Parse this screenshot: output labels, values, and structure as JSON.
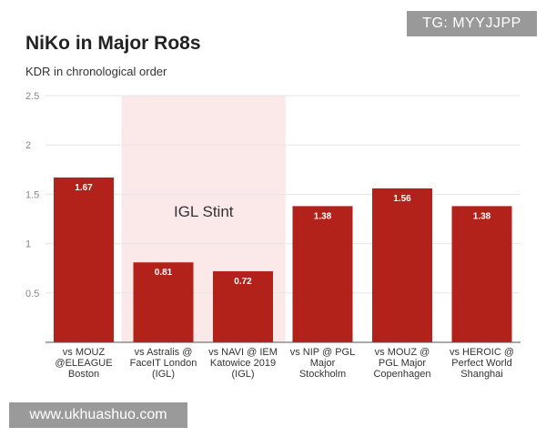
{
  "chart_data": {
    "type": "bar",
    "title": "NiKo in Major Ro8s",
    "subtitle": "KDR in chronological order",
    "xlabel": "",
    "ylabel": "",
    "ylim": [
      0,
      2.5
    ],
    "yticks": [
      "0.5",
      "1",
      "1.5",
      "2",
      "2.5"
    ],
    "tick_values": [
      0.5,
      1,
      1.5,
      2,
      2.5
    ],
    "grid": true,
    "categories": [
      [
        "vs MOUZ",
        "@ELEAGUE",
        "Boston"
      ],
      [
        "vs Astralis @",
        "FaceIT London",
        "(IGL)"
      ],
      [
        "vs NAVI @ IEM",
        "Katowice 2019",
        "(IGL)"
      ],
      [
        "vs NIP @ PGL",
        "Major",
        "Stockholm"
      ],
      [
        "vs MOUZ @",
        "PGL Major",
        "Copenhagen"
      ],
      [
        "vs HEROIC @",
        "Perfect World",
        "Shanghai"
      ]
    ],
    "values": [
      1.67,
      0.81,
      0.72,
      1.38,
      1.56,
      1.38
    ],
    "value_labels": [
      "1.67",
      "0.81",
      "0.72",
      "1.38",
      "1.56",
      "1.38"
    ],
    "bar_color": "#b3221a",
    "annotation": {
      "label": "IGL Stint",
      "from_index": 1,
      "to_index": 2,
      "color": "#fbe9e9"
    }
  },
  "watermarks": {
    "top": "TG: MYYJJPP",
    "bottom": "www.ukhuashuo.com"
  }
}
